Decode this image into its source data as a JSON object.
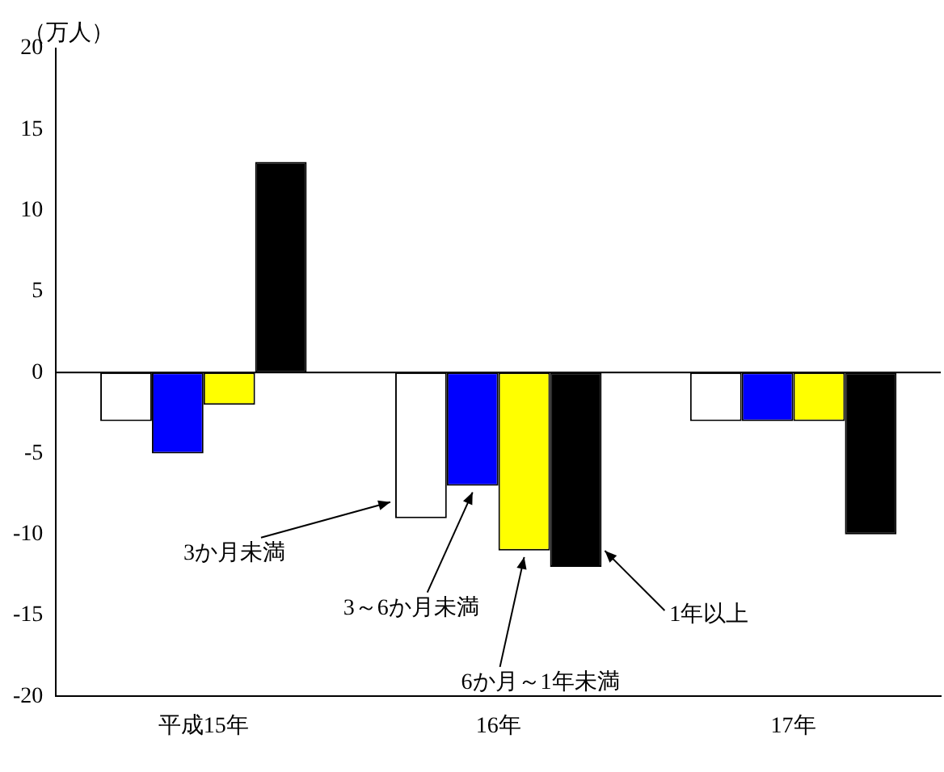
{
  "chart_data": {
    "type": "bar",
    "ylabel": "（万人）",
    "categories": [
      "平成15年",
      "16年",
      "17年"
    ],
    "series": [
      {
        "name": "3か月未満",
        "color": "#ffffff",
        "values": [
          -3,
          -9,
          -3
        ]
      },
      {
        "name": "3～6か月未満",
        "color": "#0000ff",
        "values": [
          -5,
          -7,
          -3
        ]
      },
      {
        "name": "6か月～1年未満",
        "color": "#ffff00",
        "values": [
          -2,
          -11,
          -3
        ]
      },
      {
        "name": "1年以上",
        "color": "#000000",
        "values": [
          13,
          -12,
          -10
        ]
      }
    ],
    "ylim": [
      -20,
      20
    ],
    "yticks": [
      -20,
      -15,
      -10,
      -5,
      0,
      5,
      10,
      15,
      20
    ],
    "ref_lines": [
      {
        "axis": "y",
        "value": 0,
        "color": "#000000"
      }
    ],
    "legend": false
  }
}
